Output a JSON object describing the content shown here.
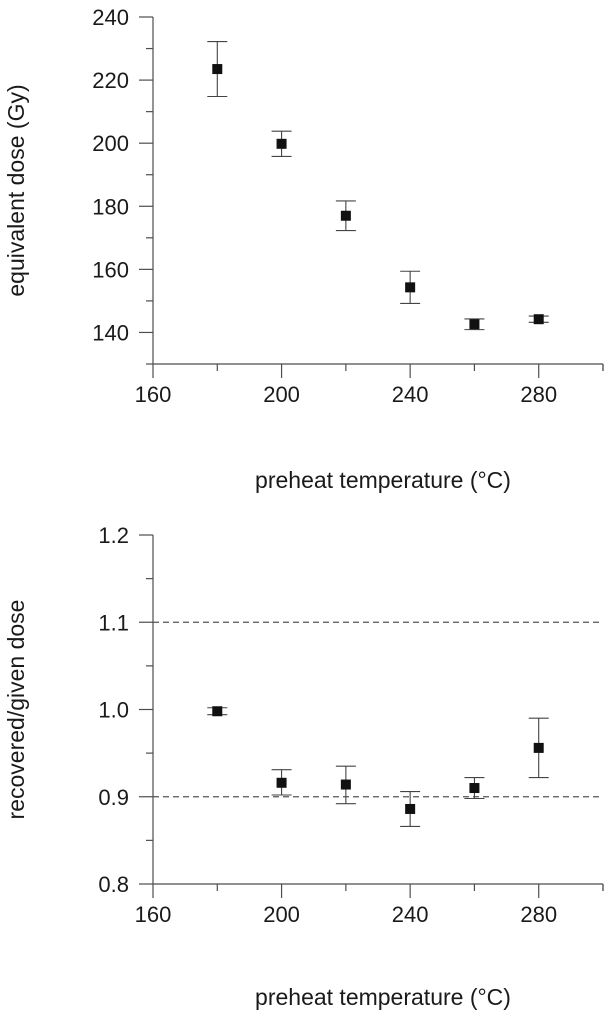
{
  "chart_data": [
    {
      "type": "scatter",
      "title": "",
      "xlabel": "preheat temperature (°C)",
      "ylabel": "equivalent dose (Gy)",
      "xlim": [
        160,
        300
      ],
      "ylim": [
        130,
        240
      ],
      "x_ticks": [
        160,
        200,
        240,
        280
      ],
      "x_tick_labels": [
        "160",
        "200",
        "240",
        "280"
      ],
      "y_ticks": [
        140,
        160,
        180,
        200,
        220,
        240
      ],
      "y_tick_labels": [
        "140",
        "160",
        "180",
        "200",
        "220",
        "240"
      ],
      "grid": false,
      "reference_lines": [],
      "points": [
        {
          "x": 180,
          "y": 223.5,
          "yerr_low": 214.8,
          "yerr_high": 232.2
        },
        {
          "x": 200,
          "y": 199.8,
          "yerr_low": 195.8,
          "yerr_high": 203.8
        },
        {
          "x": 220,
          "y": 177.0,
          "yerr_low": 172.3,
          "yerr_high": 181.7
        },
        {
          "x": 240,
          "y": 154.3,
          "yerr_low": 149.2,
          "yerr_high": 159.4
        },
        {
          "x": 260,
          "y": 142.6,
          "yerr_low": 140.9,
          "yerr_high": 144.3
        },
        {
          "x": 280,
          "y": 144.2,
          "yerr_low": 143.2,
          "yerr_high": 145.2
        }
      ]
    },
    {
      "type": "scatter",
      "title": "",
      "xlabel": "preheat temperature (°C)",
      "ylabel": "recovered/given dose",
      "xlim": [
        160,
        300
      ],
      "ylim": [
        0.8,
        1.2
      ],
      "x_ticks": [
        160,
        200,
        240,
        280
      ],
      "x_tick_labels": [
        "160",
        "200",
        "240",
        "280"
      ],
      "y_ticks": [
        0.8,
        0.9,
        1.0,
        1.1,
        1.2
      ],
      "y_tick_labels": [
        "0.8",
        "0.9",
        "1.0",
        "1.1",
        "1.2"
      ],
      "grid": false,
      "reference_lines": [
        0.9,
        1.1
      ],
      "points": [
        {
          "x": 180,
          "y": 0.998,
          "yerr_low": 0.994,
          "yerr_high": 1.002
        },
        {
          "x": 200,
          "y": 0.916,
          "yerr_low": 0.902,
          "yerr_high": 0.931
        },
        {
          "x": 220,
          "y": 0.914,
          "yerr_low": 0.892,
          "yerr_high": 0.935
        },
        {
          "x": 240,
          "y": 0.886,
          "yerr_low": 0.866,
          "yerr_high": 0.906
        },
        {
          "x": 260,
          "y": 0.91,
          "yerr_low": 0.898,
          "yerr_high": 0.922
        },
        {
          "x": 280,
          "y": 0.956,
          "yerr_low": 0.922,
          "yerr_high": 0.99
        }
      ]
    }
  ],
  "colors": {
    "axis": "#4d4d4d",
    "marker": "#111111",
    "errorbar": "#444444",
    "refline": "#555555",
    "text": "#1a1a1a"
  }
}
